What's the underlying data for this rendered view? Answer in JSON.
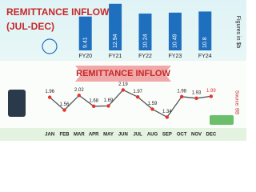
{
  "chart_data": [
    {
      "type": "bar",
      "title": "REMITTANCE INFLOW",
      "subtitle": "(JUL-DEC)",
      "y_label": "Figures in $b",
      "categories": [
        "FY20",
        "FY21",
        "FY22",
        "FY23",
        "FY24"
      ],
      "values": [
        9.41,
        12.94,
        10.24,
        10.49,
        10.8
      ],
      "color": "#1f6fbf",
      "ylim": [
        0,
        14
      ]
    },
    {
      "type": "line",
      "title": "REMITTANCE INFLOW",
      "note": "Source: BB",
      "categories": [
        "JAN",
        "FEB",
        "MAR",
        "APR",
        "MAY",
        "JUN",
        "JUL",
        "AUG",
        "SEP",
        "OCT",
        "NOV",
        "DEC"
      ],
      "values": [
        1.96,
        1.56,
        2.02,
        1.68,
        1.69,
        2.19,
        1.97,
        1.59,
        1.34,
        1.98,
        1.93,
        1.99
      ],
      "color": "#555555",
      "marker_color": "#e5322d",
      "ylim": [
        1.0,
        2.5
      ]
    }
  ]
}
